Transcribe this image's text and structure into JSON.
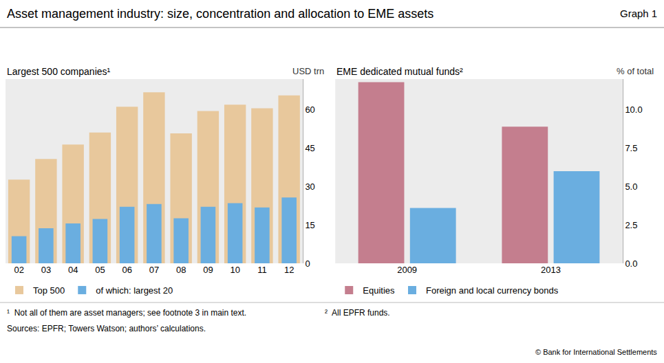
{
  "title": "Asset management industry: size, concentration and allocation to EME assets",
  "graph_label": "Graph 1",
  "footnotes": [
    "¹  Not all of them are asset managers; see footnote 3 in main text.",
    "²  All EPFR funds."
  ],
  "sources": "Sources: EPFR; Towers Watson; authors’ calculations.",
  "copyright": "© Bank for International Settlements",
  "chart_data": [
    {
      "type": "bar",
      "title": "Largest 500 companies¹",
      "ylabel": "USD trn",
      "categories": [
        "02",
        "03",
        "04",
        "05",
        "06",
        "07",
        "08",
        "09",
        "10",
        "11",
        "12"
      ],
      "series": [
        {
          "name": "Top 500",
          "color": "#e8c89c",
          "values": [
            32.7,
            40.8,
            46.4,
            51.1,
            61.2,
            66.8,
            50.8,
            59.5,
            62.0,
            60.6,
            65.6
          ]
        },
        {
          "name": "of which: largest 20",
          "color": "#6aaee0",
          "values": [
            10.6,
            13.7,
            15.6,
            17.3,
            22.1,
            23.2,
            17.6,
            22.1,
            23.5,
            21.8,
            25.7
          ]
        }
      ],
      "ylim": [
        0,
        72
      ],
      "yticks": [
        0,
        15,
        30,
        45,
        60
      ],
      "grid": false,
      "stacked": false,
      "legend": "bottom"
    },
    {
      "type": "bar",
      "title": "EME dedicated mutual funds²",
      "ylabel": "% of total",
      "categories": [
        "2009",
        "2013"
      ],
      "series": [
        {
          "name": "Equities",
          "color": "#c47e8e",
          "values": [
            11.8,
            8.9
          ]
        },
        {
          "name": "Foreign and local currency bonds",
          "color": "#6aaee0",
          "values": [
            3.6,
            6.0
          ]
        }
      ],
      "ylim": [
        0,
        12
      ],
      "yticks": [
        {
          "value": 0,
          "label": "0.0"
        },
        {
          "value": 2.5,
          "label": "2.5"
        },
        {
          "value": 5,
          "label": "5.0"
        },
        {
          "value": 7.5,
          "label": "7.5"
        },
        {
          "value": 10,
          "label": "10.0"
        }
      ],
      "grid": false,
      "stacked": false,
      "legend": "bottom"
    }
  ]
}
